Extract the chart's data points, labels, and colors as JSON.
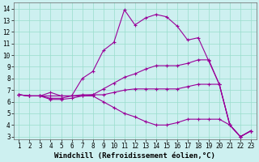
{
  "xlabel": "Windchill (Refroidissement éolien,°C)",
  "background_color": "#cdf0f0",
  "line_color": "#990099",
  "grid_color": "#99ddcc",
  "xlim": [
    0.5,
    23.5
  ],
  "ylim": [
    2.8,
    14.5
  ],
  "xticks": [
    1,
    2,
    3,
    4,
    5,
    6,
    7,
    8,
    9,
    10,
    11,
    12,
    13,
    14,
    15,
    16,
    17,
    18,
    19,
    20,
    21,
    22,
    23
  ],
  "yticks": [
    3,
    4,
    5,
    6,
    7,
    8,
    9,
    10,
    11,
    12,
    13,
    14
  ],
  "lines": [
    {
      "x": [
        1,
        2,
        3,
        4,
        5,
        6,
        7,
        8,
        9,
        10,
        11,
        12,
        13,
        14,
        15,
        16,
        17,
        18,
        19,
        20,
        21,
        22,
        23
      ],
      "y": [
        6.6,
        6.5,
        6.5,
        6.8,
        6.5,
        6.5,
        8.0,
        8.6,
        10.4,
        11.1,
        13.9,
        12.6,
        13.2,
        13.5,
        13.3,
        12.5,
        11.3,
        11.5,
        9.5,
        7.5,
        4.0,
        3.0,
        3.5
      ]
    },
    {
      "x": [
        1,
        2,
        3,
        4,
        5,
        6,
        7,
        8,
        9,
        10,
        11,
        12,
        13,
        14,
        15,
        16,
        17,
        18,
        19,
        20,
        21,
        22,
        23
      ],
      "y": [
        6.6,
        6.5,
        6.5,
        6.3,
        6.3,
        6.5,
        6.6,
        6.6,
        7.1,
        7.6,
        8.1,
        8.4,
        8.8,
        9.1,
        9.1,
        9.1,
        9.3,
        9.6,
        9.6,
        7.5,
        4.0,
        3.0,
        3.5
      ]
    },
    {
      "x": [
        1,
        2,
        3,
        4,
        5,
        6,
        7,
        8,
        9,
        10,
        11,
        12,
        13,
        14,
        15,
        16,
        17,
        18,
        19,
        20,
        21,
        22,
        23
      ],
      "y": [
        6.6,
        6.5,
        6.5,
        6.5,
        6.5,
        6.5,
        6.5,
        6.6,
        6.6,
        6.8,
        7.0,
        7.1,
        7.1,
        7.1,
        7.1,
        7.1,
        7.3,
        7.5,
        7.5,
        7.5,
        4.0,
        3.0,
        3.5
      ]
    },
    {
      "x": [
        1,
        2,
        3,
        4,
        5,
        6,
        7,
        8,
        9,
        10,
        11,
        12,
        13,
        14,
        15,
        16,
        17,
        18,
        19,
        20,
        21,
        22,
        23
      ],
      "y": [
        6.6,
        6.5,
        6.5,
        6.2,
        6.2,
        6.3,
        6.5,
        6.5,
        6.0,
        5.5,
        5.0,
        4.7,
        4.3,
        4.0,
        4.0,
        4.2,
        4.5,
        4.5,
        4.5,
        4.5,
        4.0,
        3.0,
        3.5
      ]
    }
  ],
  "marker": "+",
  "markersize": 3,
  "linewidth": 0.8,
  "tick_fontsize": 5.5,
  "label_fontsize": 6.5
}
